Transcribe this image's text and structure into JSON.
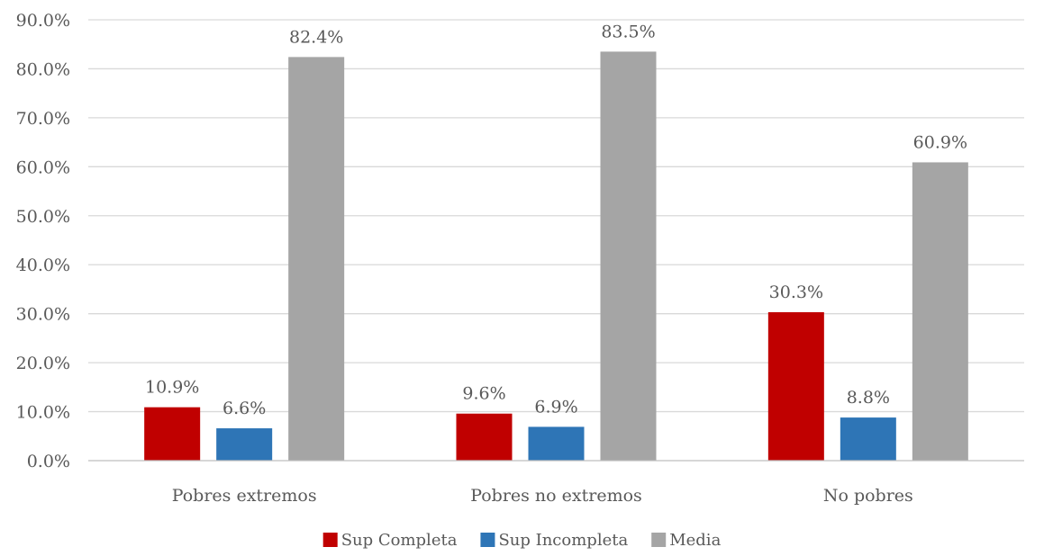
{
  "chart_data": {
    "type": "bar",
    "categories": [
      "Pobres extremos",
      "Pobres no extremos",
      "No pobres"
    ],
    "series": [
      {
        "name": "Sup Completa",
        "values": [
          10.9,
          9.6,
          30.3
        ],
        "labels": [
          "10.9%",
          "9.6%",
          "30.3%"
        ],
        "color": "#c00000"
      },
      {
        "name": "Sup Incompleta",
        "values": [
          6.6,
          6.9,
          8.8
        ],
        "labels": [
          "6.6%",
          "6.9%",
          "8.8%"
        ],
        "color": "#2e75b6"
      },
      {
        "name": "Media",
        "values": [
          82.4,
          83.5,
          60.9
        ],
        "labels": [
          "82.4%",
          "83.5%",
          "60.9%"
        ],
        "color": "#a5a5a5"
      }
    ],
    "yticks": [
      "0.0%",
      "10.0%",
      "20.0%",
      "30.0%",
      "40.0%",
      "50.0%",
      "60.0%",
      "70.0%",
      "80.0%",
      "90.0%"
    ],
    "ylim": [
      0,
      90
    ],
    "title": "",
    "xlabel": "",
    "ylabel": "",
    "grid": true,
    "legend_position": "bottom"
  }
}
